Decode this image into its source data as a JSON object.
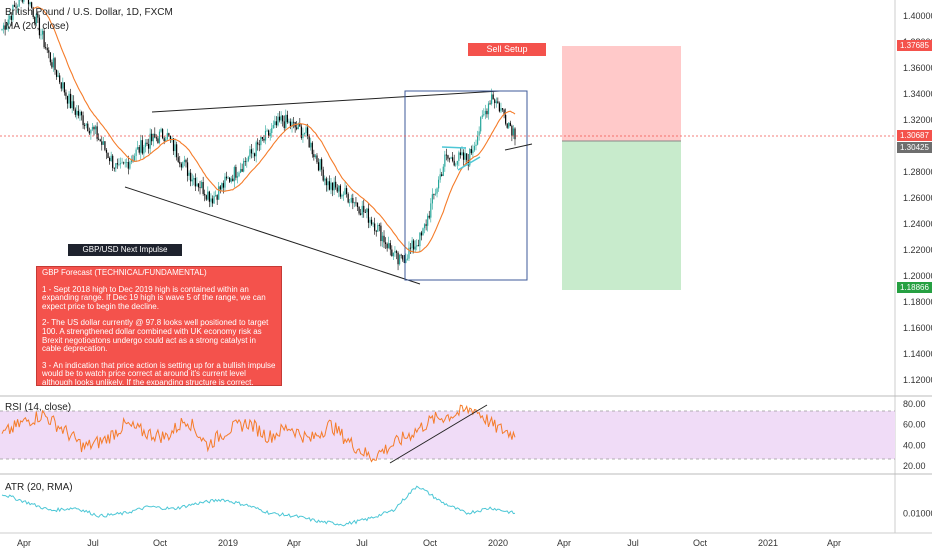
{
  "header": {
    "symbol_title": "British Pound / U.S. Dollar, 1D, FXCM",
    "ma_label": "MA (20, close)"
  },
  "colors": {
    "up": "#26a69a",
    "down": "#000000",
    "ma": "#f57c2a",
    "rsi_line": "#f57c2a",
    "rsi_band": "#f0dcf7",
    "atr_line": "#4dc7d6",
    "sell_zone": "#ffc9c9",
    "buy_zone": "#c8ebcc",
    "accent_red": "#f4524c",
    "accent_green": "#26a042",
    "box": "#3d5a98"
  },
  "annotations": {
    "sell_setup": "Sell Setup",
    "impulse_label": "GBP/USD Next Impulse",
    "forecast_title": "GBP Forecast (TECHNICAL/FUNDAMENTAL)",
    "forecast_p1": "1 - Sept 2018 high to Dec 2019 high is contained within an expanding range. If Dec 19 high is wave 5 of the range, we can expect price to begin the decline.",
    "forecast_p2": "2- The US dollar currently @ 97.8 looks well positioned to target 100. A strengthened dollar combined with UK economy risk as Brexit negotioatons undergo could act as a strong catalyst in cable deprecation.",
    "forecast_p3": "3 - An indication that price action is setting up for a bullish impulse would be to watch price correct at around it's current level although looks unlikely. If the expanding structure is correct, further downside is expected."
  },
  "price_tags": {
    "target_high": "1.37685",
    "current": "1.30687",
    "entry": "1.30425",
    "target_low": "1.18866"
  },
  "chart_data": [
    {
      "type": "line",
      "title": "British Pound / U.S. Dollar, 1D, FXCM",
      "y_axis": {
        "min": 1.1,
        "max": 1.42,
        "ticks": [
          "1.40000",
          "1.38000",
          "1.36000",
          "1.34000",
          "1.32000",
          "1.30000",
          "1.28000",
          "1.26000",
          "1.24000",
          "1.22000",
          "1.20000",
          "1.18000",
          "1.16000",
          "1.14000",
          "1.12000"
        ],
        "tick_values": [
          1.4,
          1.38,
          1.36,
          1.34,
          1.32,
          1.3,
          1.28,
          1.26,
          1.24,
          1.22,
          1.2,
          1.18,
          1.16,
          1.14,
          1.12
        ]
      },
      "x_axis": {
        "ticks": [
          "Apr",
          "Jul",
          "Oct",
          "2019",
          "Apr",
          "Jul",
          "Oct",
          "2020",
          "Apr",
          "Jul",
          "Oct",
          "2021",
          "Apr"
        ]
      },
      "series": [
        {
          "name": "MA (20, close)",
          "note": "20-period moving average of close"
        }
      ],
      "approx_close_path": {
        "dates": [
          "2018-03",
          "2018-04",
          "2018-05",
          "2018-06",
          "2018-07",
          "2018-08",
          "2018-09",
          "2018-10",
          "2018-11",
          "2018-12",
          "2019-01",
          "2019-02",
          "2019-03",
          "2019-04",
          "2019-05",
          "2019-06",
          "2019-07",
          "2019-08",
          "2019-09",
          "2019-10",
          "2019-11",
          "2019-12",
          "2020-01"
        ],
        "values": [
          1.39,
          1.42,
          1.37,
          1.33,
          1.31,
          1.28,
          1.3,
          1.31,
          1.28,
          1.26,
          1.28,
          1.3,
          1.32,
          1.31,
          1.27,
          1.26,
          1.24,
          1.21,
          1.23,
          1.29,
          1.29,
          1.34,
          1.31
        ]
      },
      "ranges": {
        "sell_zone": [
          1.30425,
          1.37685
        ],
        "buy_zone": [
          1.18866,
          1.30425
        ],
        "current_price": 1.30687
      }
    },
    {
      "type": "line",
      "title": "RSI (14, close)",
      "y_axis": {
        "min": 15,
        "max": 85,
        "ticks": [
          "80.00",
          "60.00",
          "40.00",
          "20.00"
        ],
        "tick_values": [
          80,
          60,
          40,
          20
        ]
      },
      "band": [
        30,
        70
      ],
      "approx_values": [
        50,
        62,
        70,
        55,
        38,
        45,
        60,
        52,
        48,
        66,
        40,
        55,
        62,
        48,
        58,
        45,
        60,
        42,
        28,
        40,
        52,
        65,
        70,
        76,
        58,
        50
      ]
    },
    {
      "type": "line",
      "title": "ATR (20, RMA)",
      "y_axis": {
        "ticks": [
          "0.01000"
        ],
        "tick_values": [
          0.01
        ]
      },
      "approx_values": [
        0.0135,
        0.012,
        0.0105,
        0.011,
        0.0095,
        0.01,
        0.0112,
        0.0108,
        0.0118,
        0.0125,
        0.0115,
        0.01,
        0.0095,
        0.0085,
        0.008,
        0.009,
        0.0105,
        0.015,
        0.012,
        0.01,
        0.011,
        0.01
      ]
    }
  ]
}
